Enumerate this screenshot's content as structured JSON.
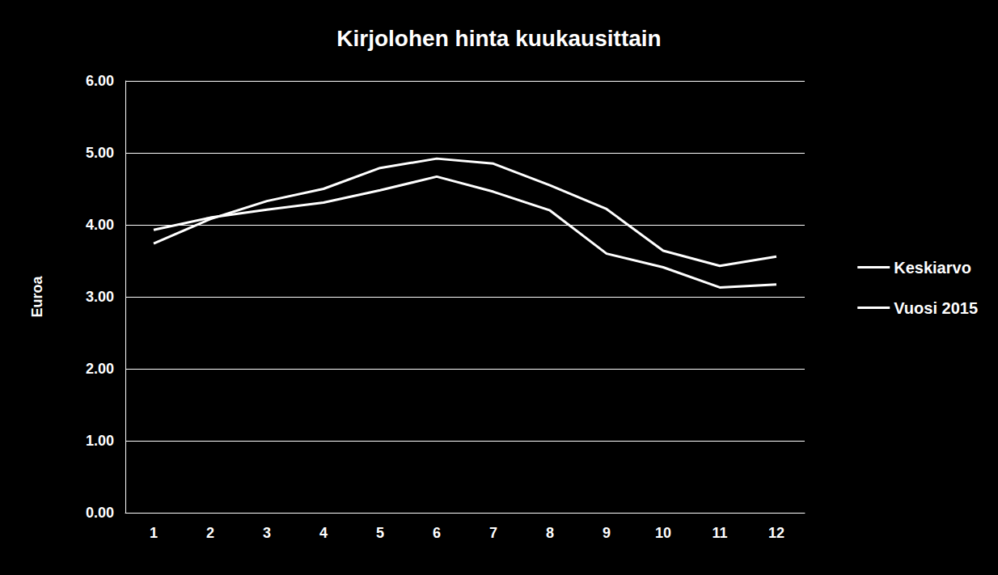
{
  "chart_data": {
    "type": "line",
    "title": "Kirjolohen hinta kuukausittain",
    "y_label": "Euroa",
    "categories": [
      "1",
      "2",
      "3",
      "4",
      "5",
      "6",
      "7",
      "8",
      "9",
      "10",
      "11",
      "12"
    ],
    "series": [
      {
        "name": "Keskiarvo",
        "color": "#ffffff",
        "values": [
          3.74,
          4.08,
          4.33,
          4.5,
          4.79,
          4.92,
          4.85,
          4.55,
          4.22,
          3.64,
          3.43,
          3.56
        ]
      },
      {
        "name": "Vuosi 2015",
        "color": "#ffffff",
        "values": [
          3.93,
          4.1,
          4.21,
          4.31,
          4.48,
          4.67,
          4.46,
          4.2,
          3.6,
          3.41,
          3.13,
          3.17
        ]
      }
    ],
    "ylim": [
      0,
      6
    ],
    "yticks": [
      {
        "value": 0,
        "label": "0.00"
      },
      {
        "value": 1,
        "label": "1.00"
      },
      {
        "value": 2,
        "label": "2.00"
      },
      {
        "value": 3,
        "label": "3.00"
      },
      {
        "value": 4,
        "label": "4.00"
      },
      {
        "value": 5,
        "label": "5.00"
      },
      {
        "value": 6,
        "label": "6.00"
      }
    ],
    "grid": true,
    "legend": "right"
  }
}
